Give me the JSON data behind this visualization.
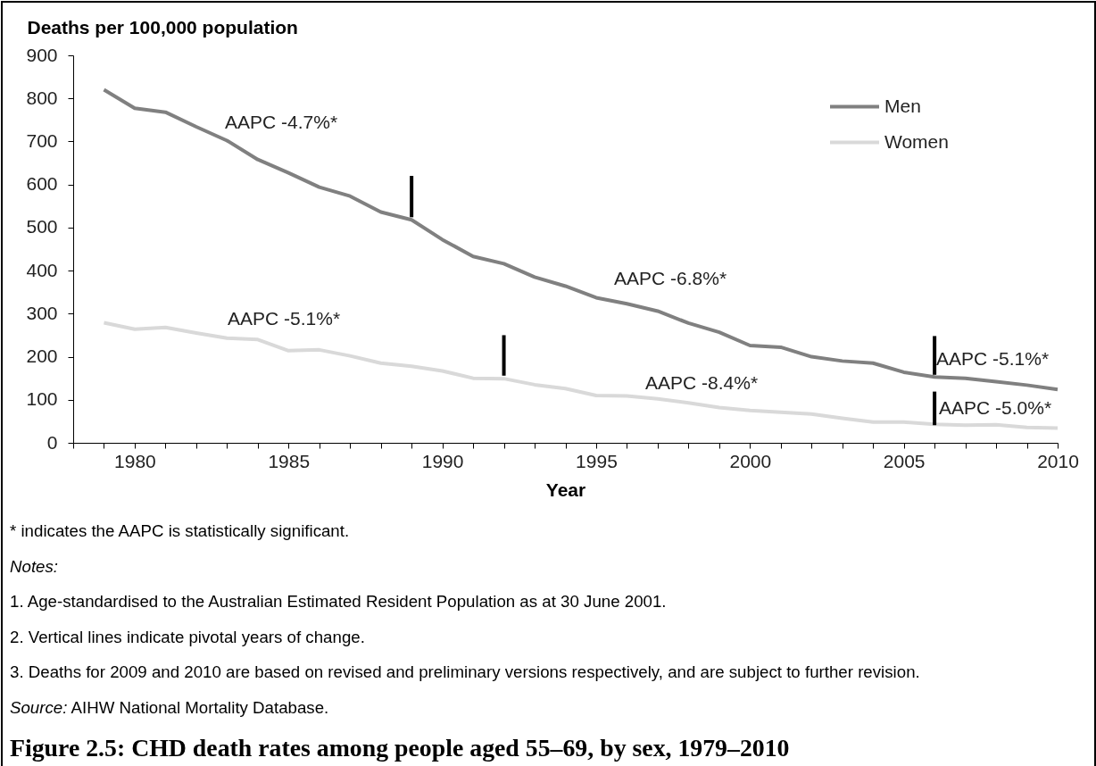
{
  "chart_data": {
    "type": "line",
    "title": "Figure 2.5: CHD death rates among people aged 55–69, by sex, 1979–2010",
    "xlabel": "Year",
    "ylabel": "Deaths per 100,000 population",
    "x": [
      1979,
      1980,
      1981,
      1982,
      1983,
      1984,
      1985,
      1986,
      1987,
      1988,
      1989,
      1990,
      1991,
      1992,
      1993,
      1994,
      1995,
      1996,
      1997,
      1998,
      1999,
      2000,
      2001,
      2002,
      2003,
      2004,
      2005,
      2006,
      2007,
      2008,
      2009,
      2010
    ],
    "series": [
      {
        "name": "Men",
        "color": "#808080",
        "values": [
          820,
          777,
          768,
          734,
          702,
          658,
          627,
          594,
          573,
          536,
          518,
          472,
          433,
          416,
          385,
          364,
          337,
          323,
          306,
          278,
          257,
          226,
          222,
          200,
          190,
          185,
          164,
          153,
          150,
          142,
          134,
          124
        ]
      },
      {
        "name": "Women",
        "color": "#d9d9d9",
        "values": [
          279,
          264,
          268,
          255,
          243,
          240,
          214,
          216,
          202,
          185,
          178,
          167,
          150,
          149,
          135,
          126,
          110,
          109,
          102,
          93,
          82,
          75,
          71,
          67,
          57,
          48,
          48,
          43,
          41,
          42,
          36,
          34
        ]
      },
      {
        "color": "#000000",
        "x": [
          1989,
          1989
        ],
        "values": [
          524,
          620
        ]
      },
      {
        "color": "#000000",
        "x": [
          1992,
          1992
        ],
        "values": [
          156,
          250
        ]
      },
      {
        "color": "#000000",
        "x": [
          2006,
          2006
        ],
        "values": [
          158,
          248
        ]
      },
      {
        "color": "#000000",
        "x": [
          2006,
          2006
        ],
        "values": [
          41,
          119
        ]
      }
    ],
    "xlim": [
      1978,
      2010
    ],
    "xticks": [
      {
        "value": 1978,
        "label": null
      },
      {
        "value": 1979,
        "label": null
      },
      1980,
      {
        "value": 1981,
        "label": null
      },
      {
        "value": 1982,
        "label": null
      },
      {
        "value": 1983,
        "label": null
      },
      {
        "value": 1984,
        "label": null
      },
      1985,
      {
        "value": 1986,
        "label": null
      },
      {
        "value": 1987,
        "label": null
      },
      {
        "value": 1988,
        "label": null
      },
      {
        "value": 1989,
        "label": null
      },
      1990,
      {
        "value": 1991,
        "label": null
      },
      {
        "value": 1992,
        "label": null
      },
      {
        "value": 1993,
        "label": null
      },
      {
        "value": 1994,
        "label": null
      },
      1995,
      {
        "value": 1996,
        "label": null
      },
      {
        "value": 1997,
        "label": null
      },
      {
        "value": 1998,
        "label": null
      },
      {
        "value": 1999,
        "label": null
      },
      2000,
      {
        "value": 2001,
        "label": null
      },
      {
        "value": 2002,
        "label": null
      },
      {
        "value": 2003,
        "label": null
      },
      {
        "value": 2004,
        "label": null
      },
      2005,
      {
        "value": 2006,
        "label": null
      },
      {
        "value": 2007,
        "label": null
      },
      {
        "value": 2008,
        "label": null
      },
      {
        "value": 2009,
        "label": null
      },
      2010
    ],
    "ylim": [
      0,
      900
    ],
    "yticks": [
      0,
      100,
      200,
      300,
      400,
      500,
      600,
      700,
      800,
      900
    ],
    "legend": "top right",
    "annotations": [
      "AAPC -4.7%*",
      "AAPC -5.1%*",
      "AAPC -6.8%*",
      "AAPC -8.4%*",
      "AAPC -5.1%*",
      "AAPC -5.0%*",
      "* indicates the AAPC is statistically significant.",
      "Notes:",
      "1. Age-standardised to the Australian Estimated Resident Population as at 30 June 2001.",
      "2. Vertical lines indicate pivotal years of change.",
      "3. Deaths for 2009 and 2010 are based on revised and preliminary versions respectively, and are subject to further revision.",
      "Source: AIHW National Mortality Database."
    ]
  }
}
